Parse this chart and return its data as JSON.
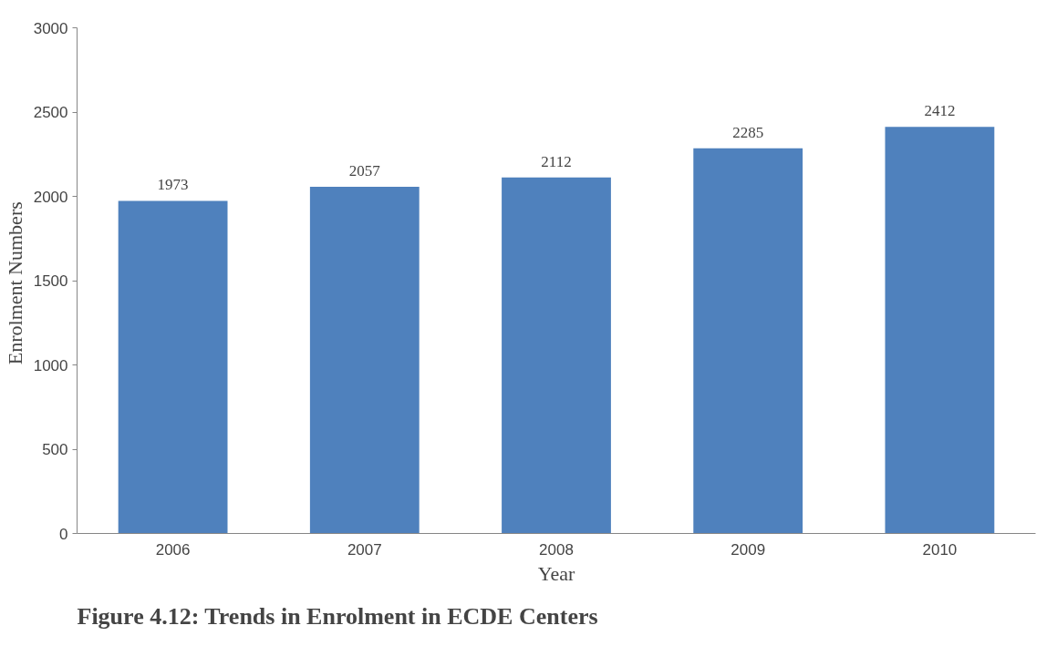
{
  "chart_data": {
    "type": "bar",
    "title": "Figure 4.12: Trends in Enrolment in ECDE Centers",
    "xlabel": "Year",
    "ylabel": "Enrolment  Numbers",
    "categories": [
      "2006",
      "2007",
      "2008",
      "2009",
      "2010"
    ],
    "values": [
      1973,
      2057,
      2112,
      2285,
      2412
    ],
    "color": "#4f81bd",
    "ylim": [
      0,
      3000
    ],
    "yticks": [
      0,
      500,
      1000,
      1500,
      2000,
      2500,
      3000
    ],
    "grid": false,
    "data_labels": true
  }
}
